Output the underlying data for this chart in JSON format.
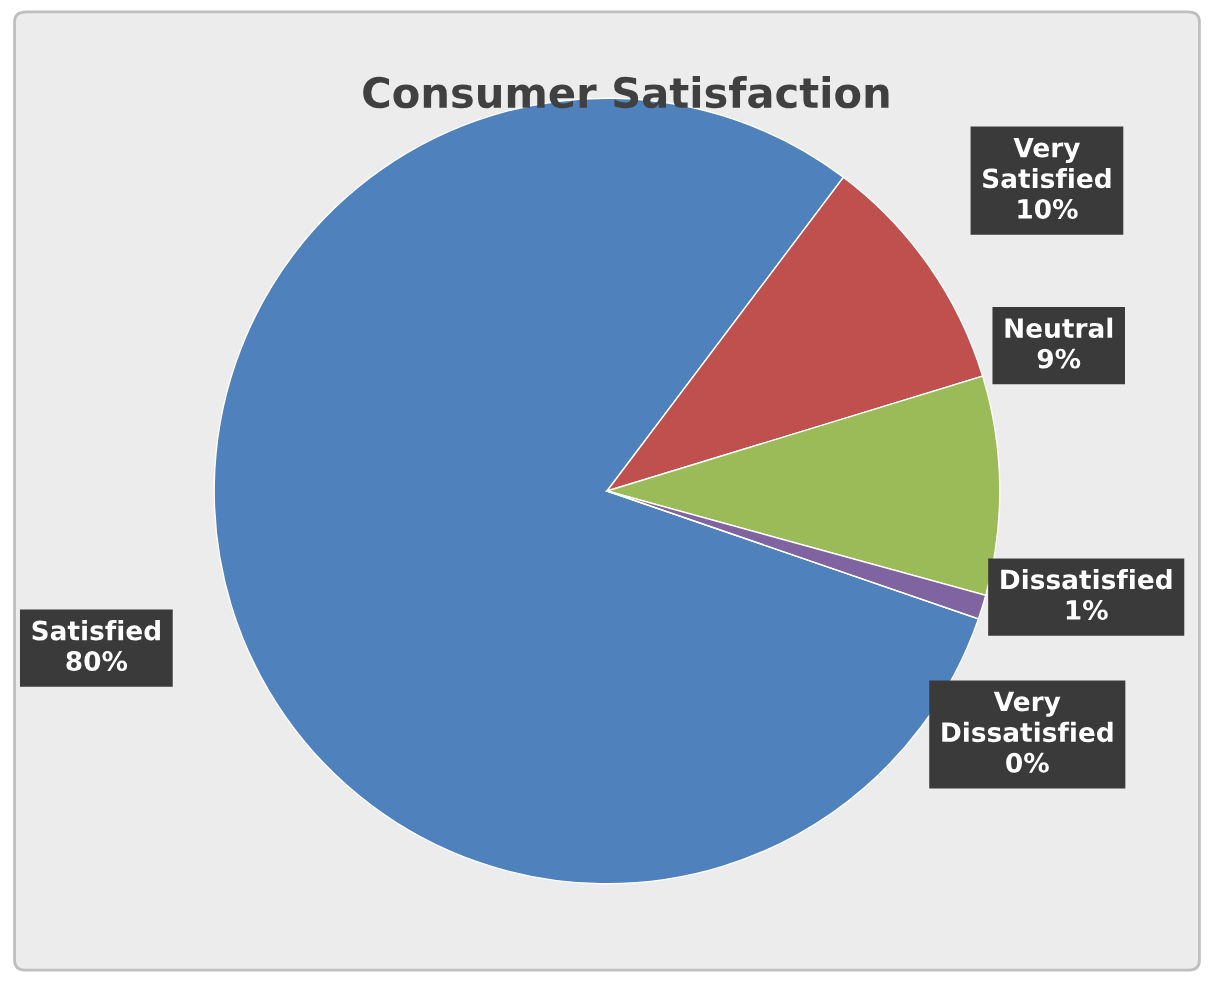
{
  "chart_data": {
    "type": "pie",
    "title": "Consumer Satisfaction",
    "categories": [
      "Satisfied",
      "Very Satisfied",
      "Neutral",
      "Dissatisfied",
      "Very Dissatisfied"
    ],
    "values": [
      80,
      10,
      9,
      1,
      0
    ],
    "value_labels": [
      "80%",
      "10%",
      "9%",
      "1%",
      "0%"
    ],
    "colors": [
      "#4f81bd",
      "#c0504d",
      "#9bbb59",
      "#8064a2",
      "#4bacc6"
    ],
    "legend": false
  }
}
